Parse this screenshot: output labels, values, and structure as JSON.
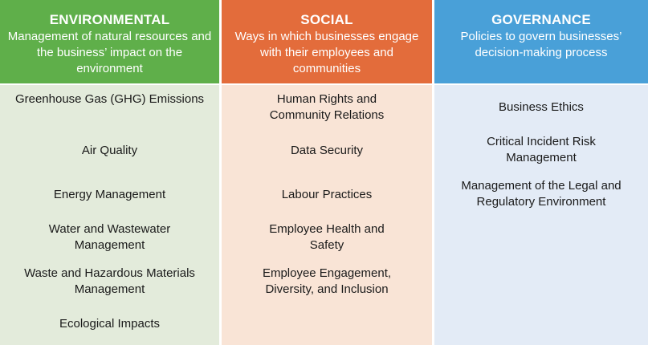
{
  "columns": [
    {
      "key": "environmental",
      "title": "ENVIRONMENTAL",
      "description": "Management of natural resources and the business’ impact on the environment",
      "color": "#5faf4a",
      "items": [
        "Greenhouse Gas (GHG) Emissions",
        "Air Quality",
        "Energy Management",
        "Water and Wastewater Management",
        "Waste and Hazardous Materials Management",
        "Ecological Impacts"
      ]
    },
    {
      "key": "social",
      "title": "SOCIAL",
      "description": "Ways in which businesses engage with their employees and communities",
      "color": "#e36c3b",
      "items": [
        "Human Rights and Community Relations",
        "Data Security",
        "Labour Practices",
        "Employee Health and Safety",
        "Employee Engagement, Diversity, and Inclusion"
      ]
    },
    {
      "key": "governance",
      "title": "GOVERNANCE",
      "description": "Policies to govern businesses’ decision-making process",
      "color": "#49a0d8",
      "items": [
        "Business Ethics",
        "Critical Incident Risk Management",
        "Management of the Legal and Regulatory Environment"
      ]
    }
  ]
}
